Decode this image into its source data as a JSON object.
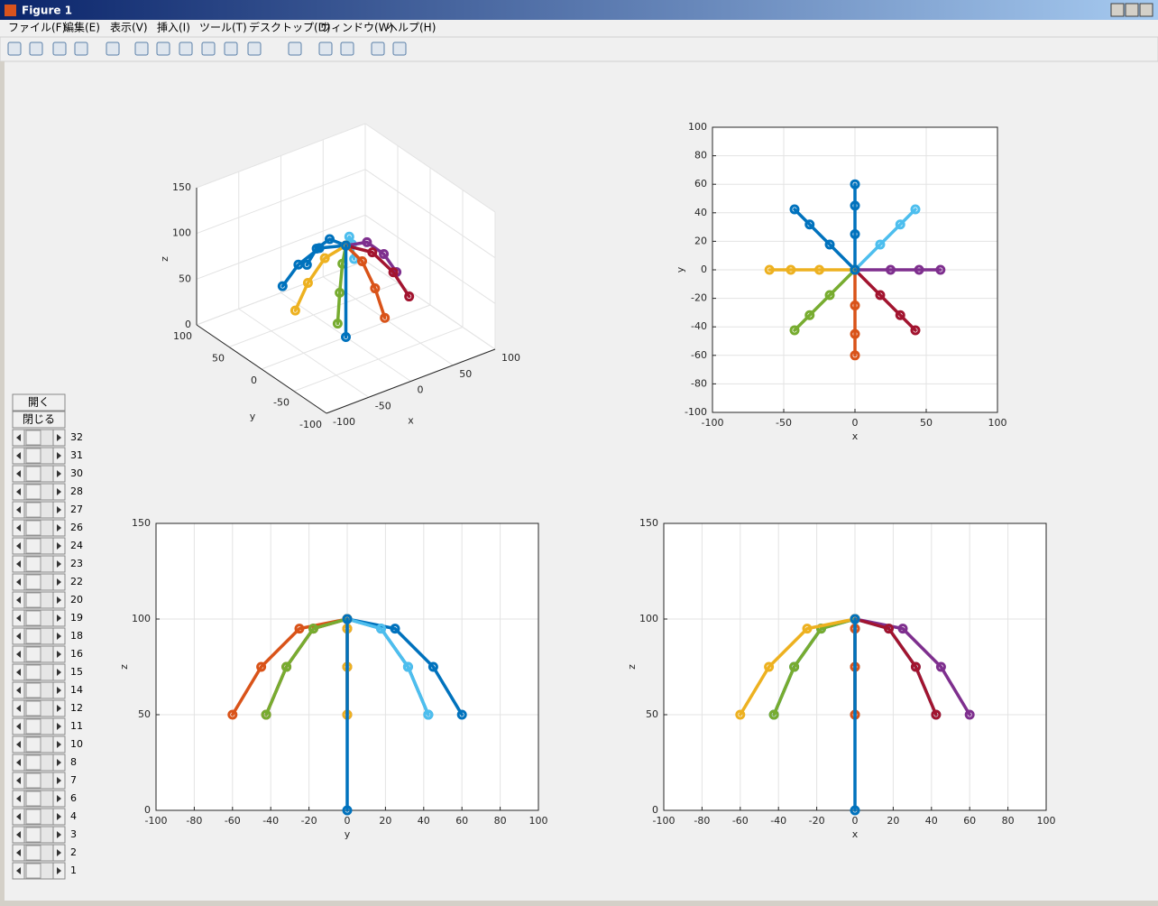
{
  "window": {
    "title": "Figure 1"
  },
  "menu": [
    "ファイル(F)",
    "編集(E)",
    "表示(V)",
    "挿入(I)",
    "ツール(T)",
    "デスクトップ(D)",
    "ウィンドウ(W)",
    "ヘルプ(H)"
  ],
  "buttons": [
    "開く",
    "閉じる"
  ],
  "slider_labels": [
    "32",
    "31",
    "30",
    "28",
    "27",
    "26",
    "24",
    "23",
    "22",
    "20",
    "19",
    "18",
    "16",
    "15",
    "14",
    "12",
    "11",
    "10",
    "8",
    "7",
    "6",
    "4",
    "3",
    "2",
    "1"
  ],
  "chart_data": [
    {
      "type": "line3d",
      "xlabel": "x",
      "ylabel": "y",
      "zlabel": "z",
      "xlim": [
        -100,
        100
      ],
      "ylim": [
        -100,
        100
      ],
      "zlim": [
        0,
        150
      ],
      "xticks": [
        -100,
        -50,
        0,
        50,
        100
      ],
      "yticks": [
        -100,
        -50,
        0,
        50,
        100
      ],
      "zticks": [
        0,
        50,
        100,
        150
      ],
      "grid": true,
      "series": [
        {
          "color": "#0072bd",
          "x": [
            0,
            0,
            0,
            0
          ],
          "y": [
            0,
            25,
            45,
            60
          ],
          "z": [
            100,
            95,
            75,
            50
          ]
        },
        {
          "color": "#0072bd",
          "x": [
            0,
            -17.7,
            -31.8,
            -42.4
          ],
          "y": [
            0,
            17.7,
            31.8,
            42.4
          ],
          "z": [
            100,
            95,
            75,
            50
          ]
        },
        {
          "color": "#4dbeee",
          "x": [
            0,
            17.7,
            31.8,
            42.4
          ],
          "y": [
            0,
            17.7,
            31.8,
            42.4
          ],
          "z": [
            100,
            95,
            75,
            50
          ]
        },
        {
          "color": "#7e2f8e",
          "x": [
            0,
            25,
            45,
            60
          ],
          "y": [
            0,
            0,
            0,
            0
          ],
          "z": [
            100,
            95,
            75,
            50
          ]
        },
        {
          "color": "#a2142f",
          "x": [
            0,
            17.7,
            31.8,
            42.4
          ],
          "y": [
            0,
            -17.7,
            -31.8,
            -42.4
          ],
          "z": [
            100,
            95,
            75,
            50
          ]
        },
        {
          "color": "#d95319",
          "x": [
            0,
            0,
            0,
            0
          ],
          "y": [
            0,
            -25,
            -45,
            -60
          ],
          "z": [
            100,
            95,
            75,
            50
          ]
        },
        {
          "color": "#77ac30",
          "x": [
            0,
            -17.7,
            -31.8,
            -42.4
          ],
          "y": [
            0,
            -17.7,
            -31.8,
            -42.4
          ],
          "z": [
            100,
            95,
            75,
            50
          ]
        },
        {
          "color": "#edb120",
          "x": [
            0,
            -25,
            -45,
            -60
          ],
          "y": [
            0,
            0,
            0,
            0
          ],
          "z": [
            100,
            95,
            75,
            50
          ]
        },
        {
          "color": "#0072bd",
          "x": [
            0,
            0
          ],
          "y": [
            0,
            0
          ],
          "z": [
            0,
            100
          ]
        }
      ]
    },
    {
      "type": "line",
      "xlabel": "x",
      "ylabel": "y",
      "xlim": [
        -100,
        100
      ],
      "ylim": [
        -100,
        100
      ],
      "xticks": [
        -100,
        -50,
        0,
        50,
        100
      ],
      "yticks": [
        -100,
        -80,
        -60,
        -40,
        -20,
        0,
        20,
        40,
        60,
        80,
        100
      ],
      "grid": true,
      "series": [
        {
          "color": "#0072bd",
          "x": [
            0,
            0,
            0,
            0
          ],
          "values": [
            0,
            25,
            45,
            60
          ]
        },
        {
          "color": "#0072bd",
          "x": [
            0,
            -17.7,
            -31.8,
            -42.4
          ],
          "values": [
            0,
            17.7,
            31.8,
            42.4
          ]
        },
        {
          "color": "#4dbeee",
          "x": [
            0,
            17.7,
            31.8,
            42.4
          ],
          "values": [
            0,
            17.7,
            31.8,
            42.4
          ]
        },
        {
          "color": "#7e2f8e",
          "x": [
            0,
            25,
            45,
            60
          ],
          "values": [
            0,
            0,
            0,
            0
          ]
        },
        {
          "color": "#a2142f",
          "x": [
            0,
            17.7,
            31.8,
            42.4
          ],
          "values": [
            0,
            -17.7,
            -31.8,
            -42.4
          ]
        },
        {
          "color": "#d95319",
          "x": [
            0,
            0,
            0,
            0
          ],
          "values": [
            0,
            -25,
            -45,
            -60
          ]
        },
        {
          "color": "#77ac30",
          "x": [
            0,
            -17.7,
            -31.8,
            -42.4
          ],
          "values": [
            0,
            -17.7,
            -31.8,
            -42.4
          ]
        },
        {
          "color": "#edb120",
          "x": [
            0,
            -25,
            -45,
            -60
          ],
          "values": [
            0,
            0,
            0,
            0
          ]
        },
        {
          "color": "#0072bd",
          "x": [
            0,
            0
          ],
          "values": [
            0,
            0
          ]
        }
      ]
    },
    {
      "type": "line",
      "xlabel": "y",
      "ylabel": "z",
      "xlim": [
        -100,
        100
      ],
      "ylim": [
        0,
        150
      ],
      "xticks": [
        -100,
        -80,
        -60,
        -40,
        -20,
        0,
        20,
        40,
        60,
        80,
        100
      ],
      "yticks": [
        0,
        50,
        100,
        150
      ],
      "grid": true,
      "series": [
        {
          "color": "#0072bd",
          "x": [
            0,
            25,
            45,
            60
          ],
          "values": [
            100,
            95,
            75,
            50
          ]
        },
        {
          "color": "#0072bd",
          "x": [
            0,
            17.7,
            31.8,
            42.4
          ],
          "values": [
            100,
            95,
            75,
            50
          ]
        },
        {
          "color": "#4dbeee",
          "x": [
            0,
            17.7,
            31.8,
            42.4
          ],
          "values": [
            100,
            95,
            75,
            50
          ]
        },
        {
          "color": "#7e2f8e",
          "x": [
            0,
            0,
            0,
            0
          ],
          "values": [
            100,
            95,
            75,
            50
          ]
        },
        {
          "color": "#a2142f",
          "x": [
            0,
            -17.7,
            -31.8,
            -42.4
          ],
          "values": [
            100,
            95,
            75,
            50
          ]
        },
        {
          "color": "#d95319",
          "x": [
            0,
            -25,
            -45,
            -60
          ],
          "values": [
            100,
            95,
            75,
            50
          ]
        },
        {
          "color": "#77ac30",
          "x": [
            0,
            -17.7,
            -31.8,
            -42.4
          ],
          "values": [
            100,
            95,
            75,
            50
          ]
        },
        {
          "color": "#edb120",
          "x": [
            0,
            0,
            0,
            0
          ],
          "values": [
            100,
            95,
            75,
            50
          ]
        },
        {
          "color": "#0072bd",
          "x": [
            0,
            0
          ],
          "values": [
            0,
            100
          ]
        }
      ]
    },
    {
      "type": "line",
      "xlabel": "x",
      "ylabel": "z",
      "xlim": [
        -100,
        100
      ],
      "ylim": [
        0,
        150
      ],
      "xticks": [
        -100,
        -80,
        -60,
        -40,
        -20,
        0,
        20,
        40,
        60,
        80,
        100
      ],
      "yticks": [
        0,
        50,
        100,
        150
      ],
      "grid": true,
      "series": [
        {
          "color": "#0072bd",
          "x": [
            0,
            0,
            0,
            0
          ],
          "values": [
            100,
            95,
            75,
            50
          ]
        },
        {
          "color": "#0072bd",
          "x": [
            0,
            -17.7,
            -31.8,
            -42.4
          ],
          "values": [
            100,
            95,
            75,
            50
          ]
        },
        {
          "color": "#4dbeee",
          "x": [
            0,
            17.7,
            31.8,
            42.4
          ],
          "values": [
            100,
            95,
            75,
            50
          ]
        },
        {
          "color": "#7e2f8e",
          "x": [
            0,
            25,
            45,
            60
          ],
          "values": [
            100,
            95,
            75,
            50
          ]
        },
        {
          "color": "#a2142f",
          "x": [
            0,
            17.7,
            31.8,
            42.4
          ],
          "values": [
            100,
            95,
            75,
            50
          ]
        },
        {
          "color": "#d95319",
          "x": [
            0,
            0,
            0,
            0
          ],
          "values": [
            100,
            95,
            75,
            50
          ]
        },
        {
          "color": "#77ac30",
          "x": [
            0,
            -17.7,
            -31.8,
            -42.4
          ],
          "values": [
            100,
            95,
            75,
            50
          ]
        },
        {
          "color": "#edb120",
          "x": [
            0,
            -25,
            -45,
            -60
          ],
          "values": [
            100,
            95,
            75,
            50
          ]
        },
        {
          "color": "#0072bd",
          "x": [
            0,
            0
          ],
          "values": [
            0,
            100
          ]
        }
      ]
    }
  ]
}
